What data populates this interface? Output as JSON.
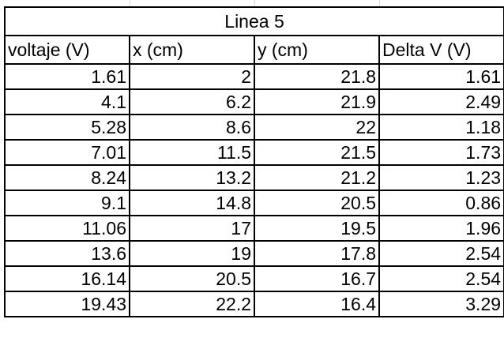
{
  "table": {
    "title": "Linea 5",
    "headers": [
      "voltaje (V)",
      "x (cm)",
      "y (cm)",
      "Delta V (V)"
    ],
    "rows": [
      [
        "1.61",
        "2",
        "21.8",
        "1.61"
      ],
      [
        "4.1",
        "6.2",
        "21.9",
        "2.49"
      ],
      [
        "5.28",
        "8.6",
        "22",
        "1.18"
      ],
      [
        "7.01",
        "11.5",
        "21.5",
        "1.73"
      ],
      [
        "8.24",
        "13.2",
        "21.2",
        "1.23"
      ],
      [
        "9.1",
        "14.8",
        "20.5",
        "0.86"
      ],
      [
        "11.06",
        "17",
        "19.5",
        "1.96"
      ],
      [
        "13.6",
        "19",
        "17.8",
        "2.54"
      ],
      [
        "16.14",
        "20.5",
        "16.7",
        "2.54"
      ],
      [
        "19.43",
        "22.2",
        "16.4",
        "3.29"
      ]
    ]
  }
}
